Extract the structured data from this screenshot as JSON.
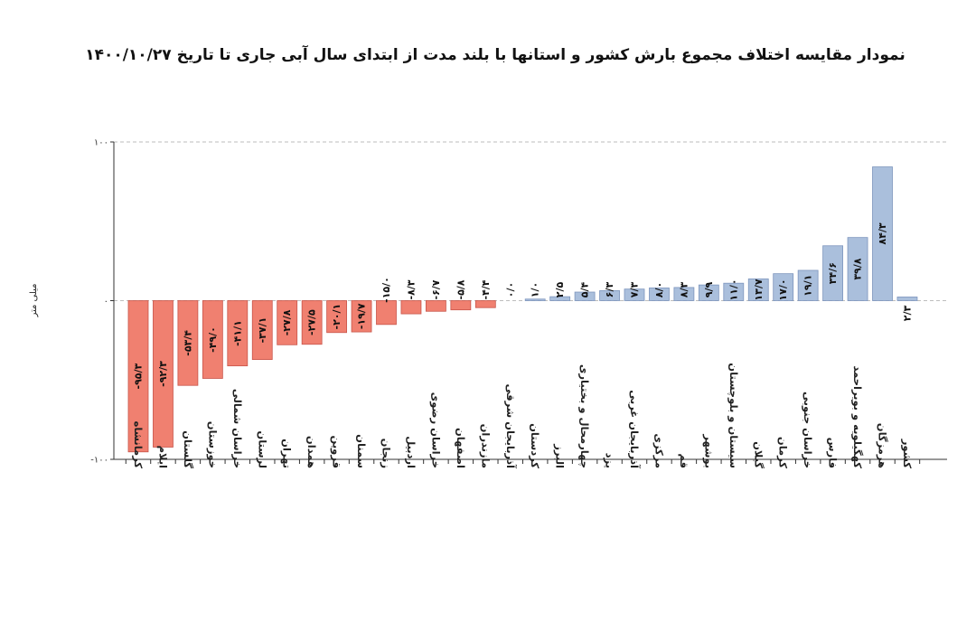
{
  "chart_data": {
    "type": "bar",
    "title": "نمودار مقایسه اختلاف مجموع بارش کشور و استانها با بلند مدت از ابتدای سال آبی جاری تا تاریخ ۱۴۰۰/۱۰/۲۷",
    "ylabel": "میلی متر",
    "xlabel": "",
    "ylim": [
      -100,
      100
    ],
    "yticks": [
      -100,
      0,
      100
    ],
    "ytick_labels": [
      "-۱۰۰",
      "۰",
      "۱۰۰"
    ],
    "grid": "dashed lines at 0 and 100",
    "colors": {
      "negative": "#f08070",
      "positive": "#aabfdc",
      "negative_edge": "#c8554a",
      "positive_edge": "#7d95bd"
    },
    "categories": [
      "کرمانشاه",
      "ایلام",
      "گلستان",
      "خوزستان",
      "خراسان شمالی",
      "لرستان",
      "تهران",
      "همدان",
      "قزوین",
      "سمنان",
      "زنجان",
      "اردبیل",
      "خراسان رضوی",
      "اصفهان",
      "مازندران",
      "آذربایجان شرقی",
      "کردستان",
      "البرز",
      "چهارمحال و بختیاری",
      "یزد",
      "آذربایجان غربی",
      "مرکزی",
      "قم",
      "بوشهر",
      "سیستان و بلوچستان",
      "گیلان",
      "کرمان",
      "خراسان جنوبی",
      "فارس",
      "کهگیلویه و بویراحمد",
      "هرمزگان",
      "کشور"
    ],
    "values": [
      -95.3,
      -92.3,
      -53.4,
      -49.0,
      -41.1,
      -37.1,
      -27.8,
      -27.5,
      -20.1,
      -19.7,
      -15.0,
      -8.3,
      -6.7,
      -5.8,
      -4.4,
      0.0,
      1.0,
      2.5,
      5.4,
      6.3,
      7.3,
      8.0,
      8.3,
      9.9,
      11.0,
      13.7,
      17.0,
      19.1,
      34.6,
      39.8,
      84.3,
      2.3
    ],
    "data_labels": [
      "-۹۵/۳",
      "-۹۲/۳",
      "-۵۳/۴",
      "-۴۹/۰",
      "-۴۱/۱",
      "-۳۷/۱",
      "-۲۷/۸",
      "-۲۷/۵",
      "-۲۰/۱",
      "-۱۹/۷",
      "-۱۵/۰",
      "-۸/۳",
      "-۶/۷",
      "-۵/۸",
      "-۴/۴",
      "۰/۰",
      "۱/۰",
      "۲/۵",
      "۵/۴",
      "۶/۳",
      "۷/۳",
      "۸/۰",
      "۸/۳",
      "۹/۹",
      "۱۱/۰",
      "۱۳/۷",
      "۱۷/۰",
      "۱۹/۱",
      "۳۴/۶",
      "۳۹/۸",
      "۸۴/۳",
      "۲/۳"
    ]
  }
}
